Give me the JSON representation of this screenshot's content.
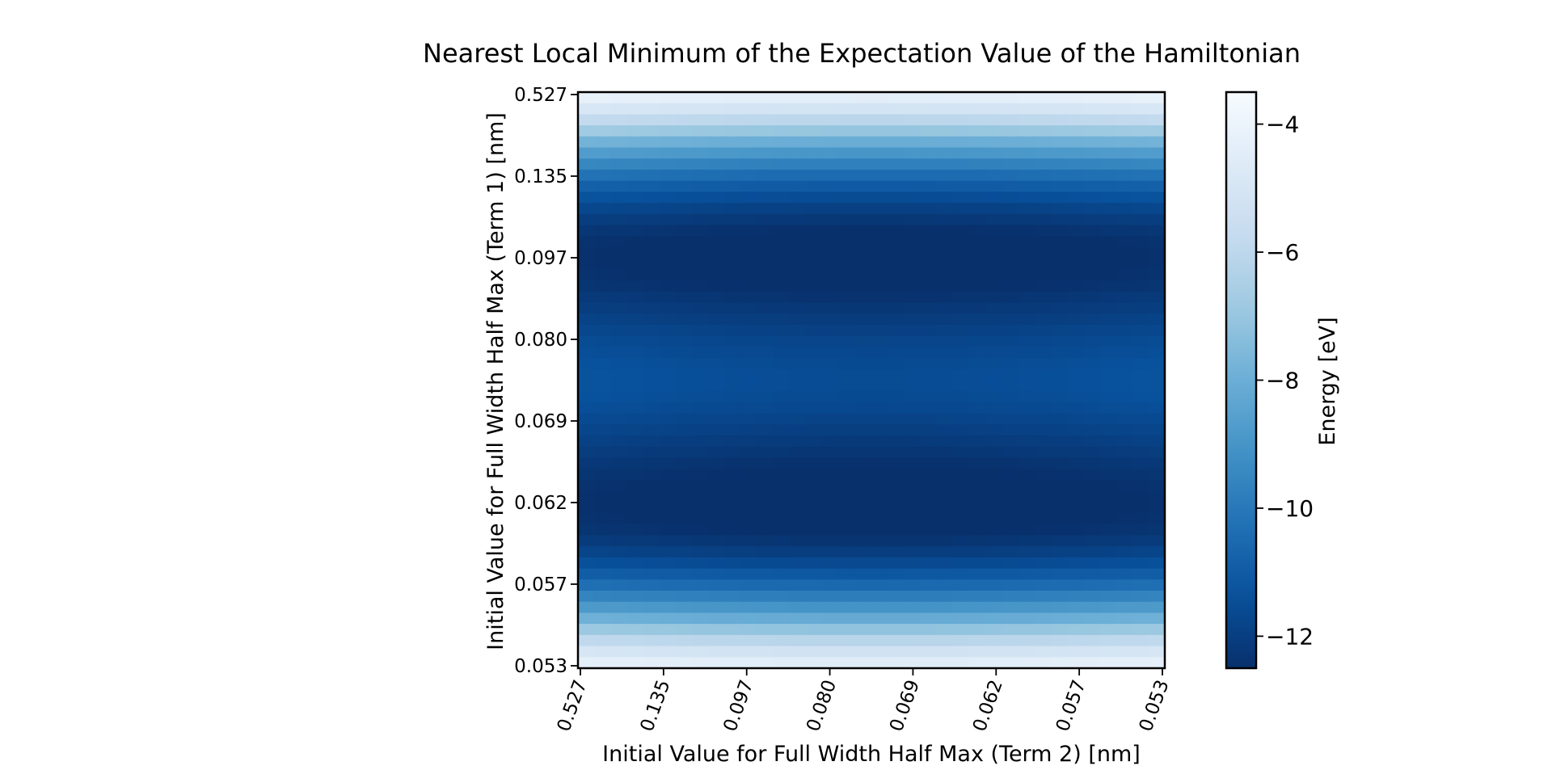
{
  "chart_data": {
    "type": "heatmap",
    "title": "Nearest Local Minimum of the Expectation Value of the Hamiltonian",
    "xlabel": "Initial Value for Full Width Half Max (Term 2) [nm]",
    "ylabel": "Initial Value for Full Width Half Max (Term 1) [nm]",
    "x_tick_labels": [
      "0.527",
      "0.135",
      "0.097",
      "0.080",
      "0.069",
      "0.062",
      "0.057",
      "0.053"
    ],
    "y_tick_labels": [
      "0.527",
      "0.135",
      "0.097",
      "0.080",
      "0.069",
      "0.062",
      "0.057",
      "0.053"
    ],
    "colormap": "Blues_r",
    "colorbar": {
      "label": "Energy [eV]",
      "range": [
        -12.5,
        -3.5
      ],
      "ticks": [
        -4,
        -6,
        -8,
        -10,
        -12
      ],
      "tick_labels": [
        "−4",
        "−6",
        "−8",
        "−10",
        "−12"
      ]
    },
    "grid": false,
    "note_rows_top_to_bottom_energy_eV": [
      -4.2,
      -4.9,
      -5.8,
      -6.8,
      -7.8,
      -8.7,
      -9.5,
      -10.2,
      -10.8,
      -11.3,
      -11.7,
      -12.0,
      -12.25,
      -12.4,
      -12.45,
      -12.45,
      -12.4,
      -12.3,
      -12.15,
      -12.0,
      -11.85,
      -11.7,
      -11.55,
      -11.45,
      -11.35,
      -11.3,
      -11.3,
      -11.35,
      -11.45,
      -11.6,
      -11.75,
      -11.9,
      -12.05,
      -12.2,
      -12.3,
      -12.4,
      -12.45,
      -12.45,
      -12.4,
      -12.3,
      -12.1,
      -11.8,
      -11.4,
      -10.9,
      -10.3,
      -9.6,
      -8.8,
      -7.9,
      -6.9,
      -5.9,
      -5.0,
      -4.3
    ],
    "energy_variation_across_columns_eV": 0.25
  }
}
